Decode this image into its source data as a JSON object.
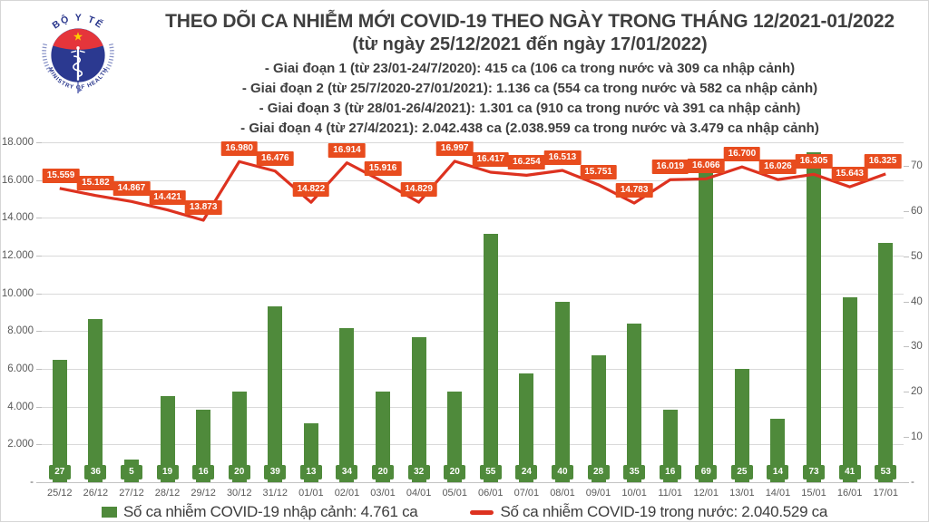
{
  "header": {
    "logo": {
      "top_text": "BỘ Y TẾ",
      "bottom_text": "MINISTRY OF HEALTH"
    },
    "title": "THEO DÕI CA NHIỄM MỚI COVID-19 THEO NGÀY TRONG THÁNG 12/2021-01/2022",
    "subtitle": "(từ ngày 25/12/2021 đến ngày 17/01/2022)",
    "bullets": [
      "- Giai đoạn 1 (từ 23/01-24/7/2020): 415 ca (106 ca trong nước và 309 ca nhập cảnh)",
      "- Giai đoạn 2 (từ 25/7/2020-27/01/2021): 1.136 ca (554 ca trong nước và 582 ca nhập cảnh)",
      "- Giai đoạn 3 (từ 28/01-26/4/2021): 1.301 ca (910 ca trong nước và 391 ca nhập cảnh)",
      "- Giai đoạn 4 (từ 27/4/2021): 2.042.438 ca (2.038.959 ca trong nước và 3.479 ca nhập cảnh)"
    ]
  },
  "chart_data": {
    "type": "bar",
    "subtype": "bar-line-combo",
    "categories": [
      "25/12",
      "26/12",
      "27/12",
      "28/12",
      "29/12",
      "30/12",
      "31/12",
      "01/01",
      "02/01",
      "03/01",
      "04/01",
      "05/01",
      "06/01",
      "07/01",
      "08/01",
      "09/01",
      "10/01",
      "11/01",
      "12/01",
      "13/01",
      "14/01",
      "15/01",
      "16/01",
      "17/01"
    ],
    "series": [
      {
        "name": "Số ca nhiễm COVID-19 nhập cảnh: 4.761 ca",
        "type": "bar",
        "axis": "right",
        "values": [
          27,
          36,
          5,
          19,
          16,
          20,
          39,
          13,
          34,
          20,
          32,
          20,
          55,
          24,
          40,
          28,
          35,
          16,
          69,
          25,
          14,
          73,
          41,
          53
        ],
        "labels": [
          "27",
          "36",
          "5",
          "19",
          "16",
          "20",
          "39",
          "13",
          "34",
          "20",
          "32",
          "20",
          "55",
          "24",
          "40",
          "28",
          "35",
          "16",
          "69",
          "25",
          "14",
          "73",
          "41",
          "53"
        ]
      },
      {
        "name": "Số ca nhiễm COVID-19 trong nước: 2.040.529 ca",
        "type": "line",
        "axis": "left",
        "values": [
          15559,
          15182,
          14867,
          14421,
          13873,
          16980,
          16476,
          14822,
          16914,
          15916,
          14829,
          16997,
          16417,
          16254,
          16513,
          15751,
          14783,
          16019,
          16066,
          16700,
          16026,
          16305,
          15643,
          16325
        ],
        "labels": [
          "15.559",
          "15.182",
          "14.867",
          "14.421",
          "13.873",
          "16.980",
          "16.476",
          "14.822",
          "16.914",
          "15.916",
          "14.829",
          "16.997",
          "16.417",
          "16.254",
          "16.513",
          "15.751",
          "14.783",
          "16.019",
          "16.066",
          "16.700",
          "16.026",
          "16.305",
          "15.643",
          "16.325"
        ]
      }
    ],
    "left_axis": {
      "min": 0,
      "max": 18000,
      "tick_labels": [
        "18.000",
        "16.000",
        "14.000",
        "12.000",
        "10.000",
        "8.000",
        "6.000",
        "4.000",
        "2.000",
        "-"
      ]
    },
    "right_axis": {
      "min": 0,
      "max": 75.2,
      "tick_step": 10,
      "tick_labels": [
        "70",
        "60",
        "50",
        "40",
        "30",
        "20",
        "10",
        "-"
      ]
    },
    "grid": true,
    "legend_position": "bottom",
    "title": "THEO DÕI CA NHIỄM MỚI COVID-19 THEO NGÀY TRONG THÁNG 12/2021-01/2022"
  },
  "colors": {
    "bar": "#4f8a3b",
    "bar_label_bg": "#4f8a3b",
    "line": "#dd3220",
    "line_label_bg": "#e84c1e",
    "axis_text": "#595959",
    "grid": "#d9d9d9",
    "title_text": "#3f3f3f",
    "logo_red": "#e5353b",
    "logo_blue": "#2b3990",
    "logo_star": "#ffcc00"
  }
}
